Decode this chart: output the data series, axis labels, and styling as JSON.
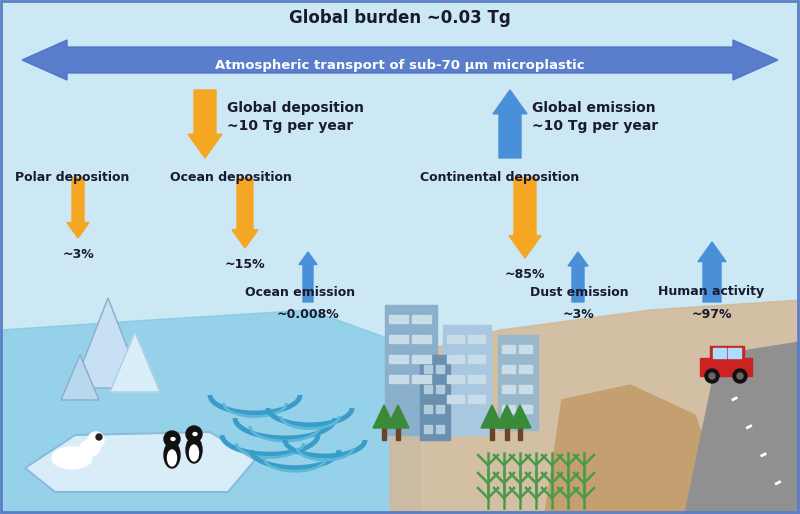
{
  "bg_color": "#cce8f4",
  "title_global_burden": "Global burden ~0.03 Tg",
  "title_atm_transport": "Atmospheric transport of sub-70 μm microplastic",
  "arrow_double_color": "#4a6fc7",
  "global_deposition_label1": "Global deposition",
  "global_deposition_label2": "~10 Tg per year",
  "global_emission_label1": "Global emission",
  "global_emission_label2": "~10 Tg per year",
  "polar_dep_label": "Polar deposition",
  "polar_dep_pct": "~3%",
  "ocean_dep_label": "Ocean deposition",
  "ocean_dep_pct": "~15%",
  "continental_dep_label": "Continental deposition",
  "continental_dep_pct": "~85%",
  "ocean_em_label": "Ocean emission",
  "ocean_em_pct": "~0.008%",
  "dust_em_label": "Dust emission",
  "dust_em_pct": "~3%",
  "human_act_label": "Human activity",
  "human_act_pct": "~97%",
  "orange_arrow_color": "#f5a623",
  "blue_arrow_color": "#4a90d9",
  "text_color": "#1a1a2e",
  "border_color": "#5b7fc7",
  "ocean_color": "#7ec8e3",
  "sand_color": "#d4b896",
  "wave_color": "#3a9cc8",
  "ice_color": "#e0f0fa",
  "building_color1": "#8ab0cc",
  "building_color2": "#a8c8e0",
  "building_color3": "#6a90b0",
  "window_color": "#c8dde8",
  "tree_color": "#3a8a3a",
  "road_color": "#909090",
  "car_color": "#cc2222",
  "grass_color": "#4a9a4a"
}
